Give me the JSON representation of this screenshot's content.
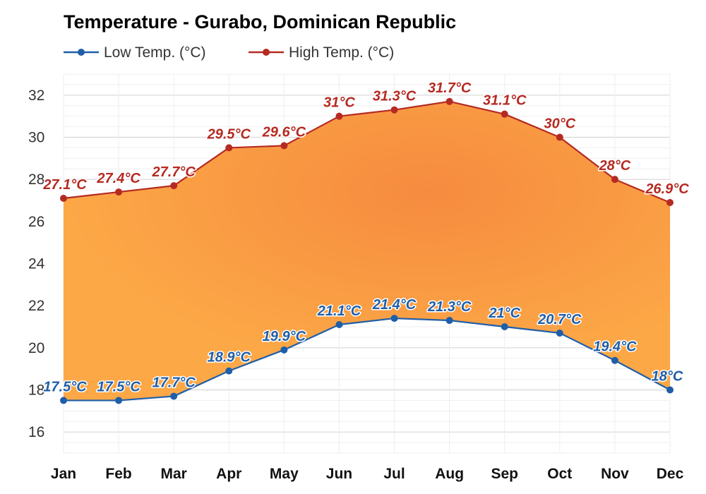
{
  "chart_data": {
    "type": "area",
    "title": "Temperature - Gurabo, Dominican Republic",
    "categories": [
      "Jan",
      "Feb",
      "Mar",
      "Apr",
      "May",
      "Jun",
      "Jul",
      "Aug",
      "Sep",
      "Oct",
      "Nov",
      "Dec"
    ],
    "y_ticks": [
      "16",
      "18",
      "20",
      "22",
      "24",
      "26",
      "28",
      "30",
      "32"
    ],
    "ylim": [
      15,
      33
    ],
    "grid": true,
    "legend_position": "top-left",
    "range_fill": "between-series",
    "series": [
      {
        "name": "Low Temp. (°C)",
        "color": "#1f5ea8",
        "values": [
          17.5,
          17.5,
          17.7,
          18.9,
          19.9,
          21.1,
          21.4,
          21.3,
          21.0,
          20.7,
          19.4,
          18.0
        ],
        "labels": [
          "17.5°C",
          "17.5°C",
          "17.7°C",
          "18.9°C",
          "19.9°C",
          "21.1°C",
          "21.4°C",
          "21.3°C",
          "21°C",
          "20.7°C",
          "19.4°C",
          "18°C"
        ]
      },
      {
        "name": "High Temp. (°C)",
        "color": "#b52a22",
        "values": [
          27.1,
          27.4,
          27.7,
          29.5,
          29.6,
          31.0,
          31.3,
          31.7,
          31.1,
          30.0,
          28.0,
          26.9
        ],
        "labels": [
          "27.1°C",
          "27.4°C",
          "27.7°C",
          "29.5°C",
          "29.6°C",
          "31°C",
          "31.3°C",
          "31.7°C",
          "31.1°C",
          "30°C",
          "28°C",
          "26.9°C"
        ]
      }
    ]
  }
}
